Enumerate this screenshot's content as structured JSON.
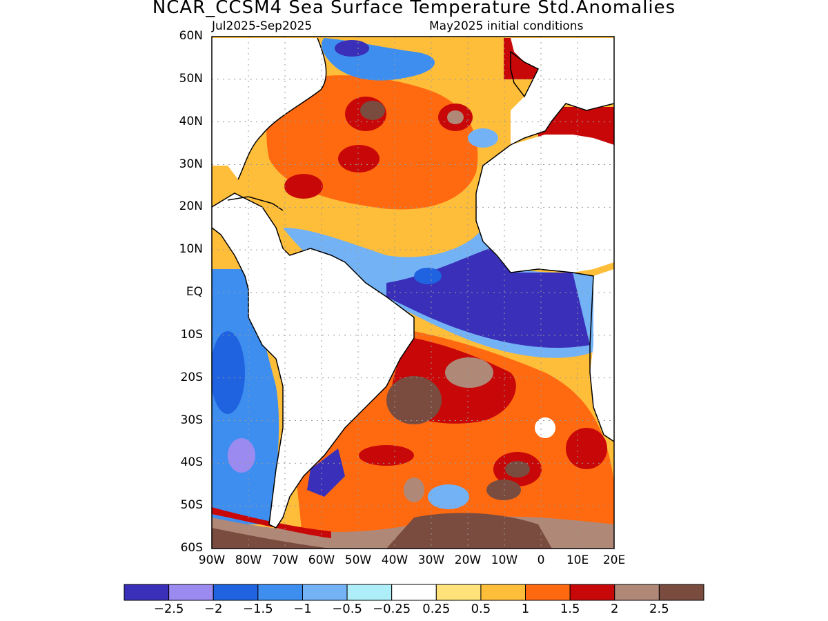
{
  "title": "NCAR_CCSM4 Sea Surface Temperature Std.Anomalies",
  "subtitle_left": "Jul2025-Sep2025",
  "subtitle_right": "May2025 initial conditions",
  "lat_labels": [
    "60N",
    "50N",
    "40N",
    "30N",
    "20N",
    "10N",
    "EQ",
    "10S",
    "20S",
    "30S",
    "40S",
    "50S",
    "60S"
  ],
  "lon_labels": [
    "90W",
    "80W",
    "70W",
    "60W",
    "50W",
    "40W",
    "30W",
    "20W",
    "10W",
    "0",
    "10E",
    "20E"
  ],
  "colorbar": {
    "colors": [
      "#3a2fb8",
      "#9b8af0",
      "#1f63e0",
      "#3e8ef0",
      "#73b2f5",
      "#aeeef8",
      "#ffffff",
      "#ffe27a",
      "#ffbe3a",
      "#ff6a10",
      "#c80808",
      "#b08878",
      "#7a4c40"
    ],
    "labels": [
      "-2.5",
      "-2",
      "-1.5",
      "-1",
      "-0.5",
      "-0.25",
      "0.25",
      "0.5",
      "1",
      "1.5",
      "2",
      "2.5"
    ]
  }
}
